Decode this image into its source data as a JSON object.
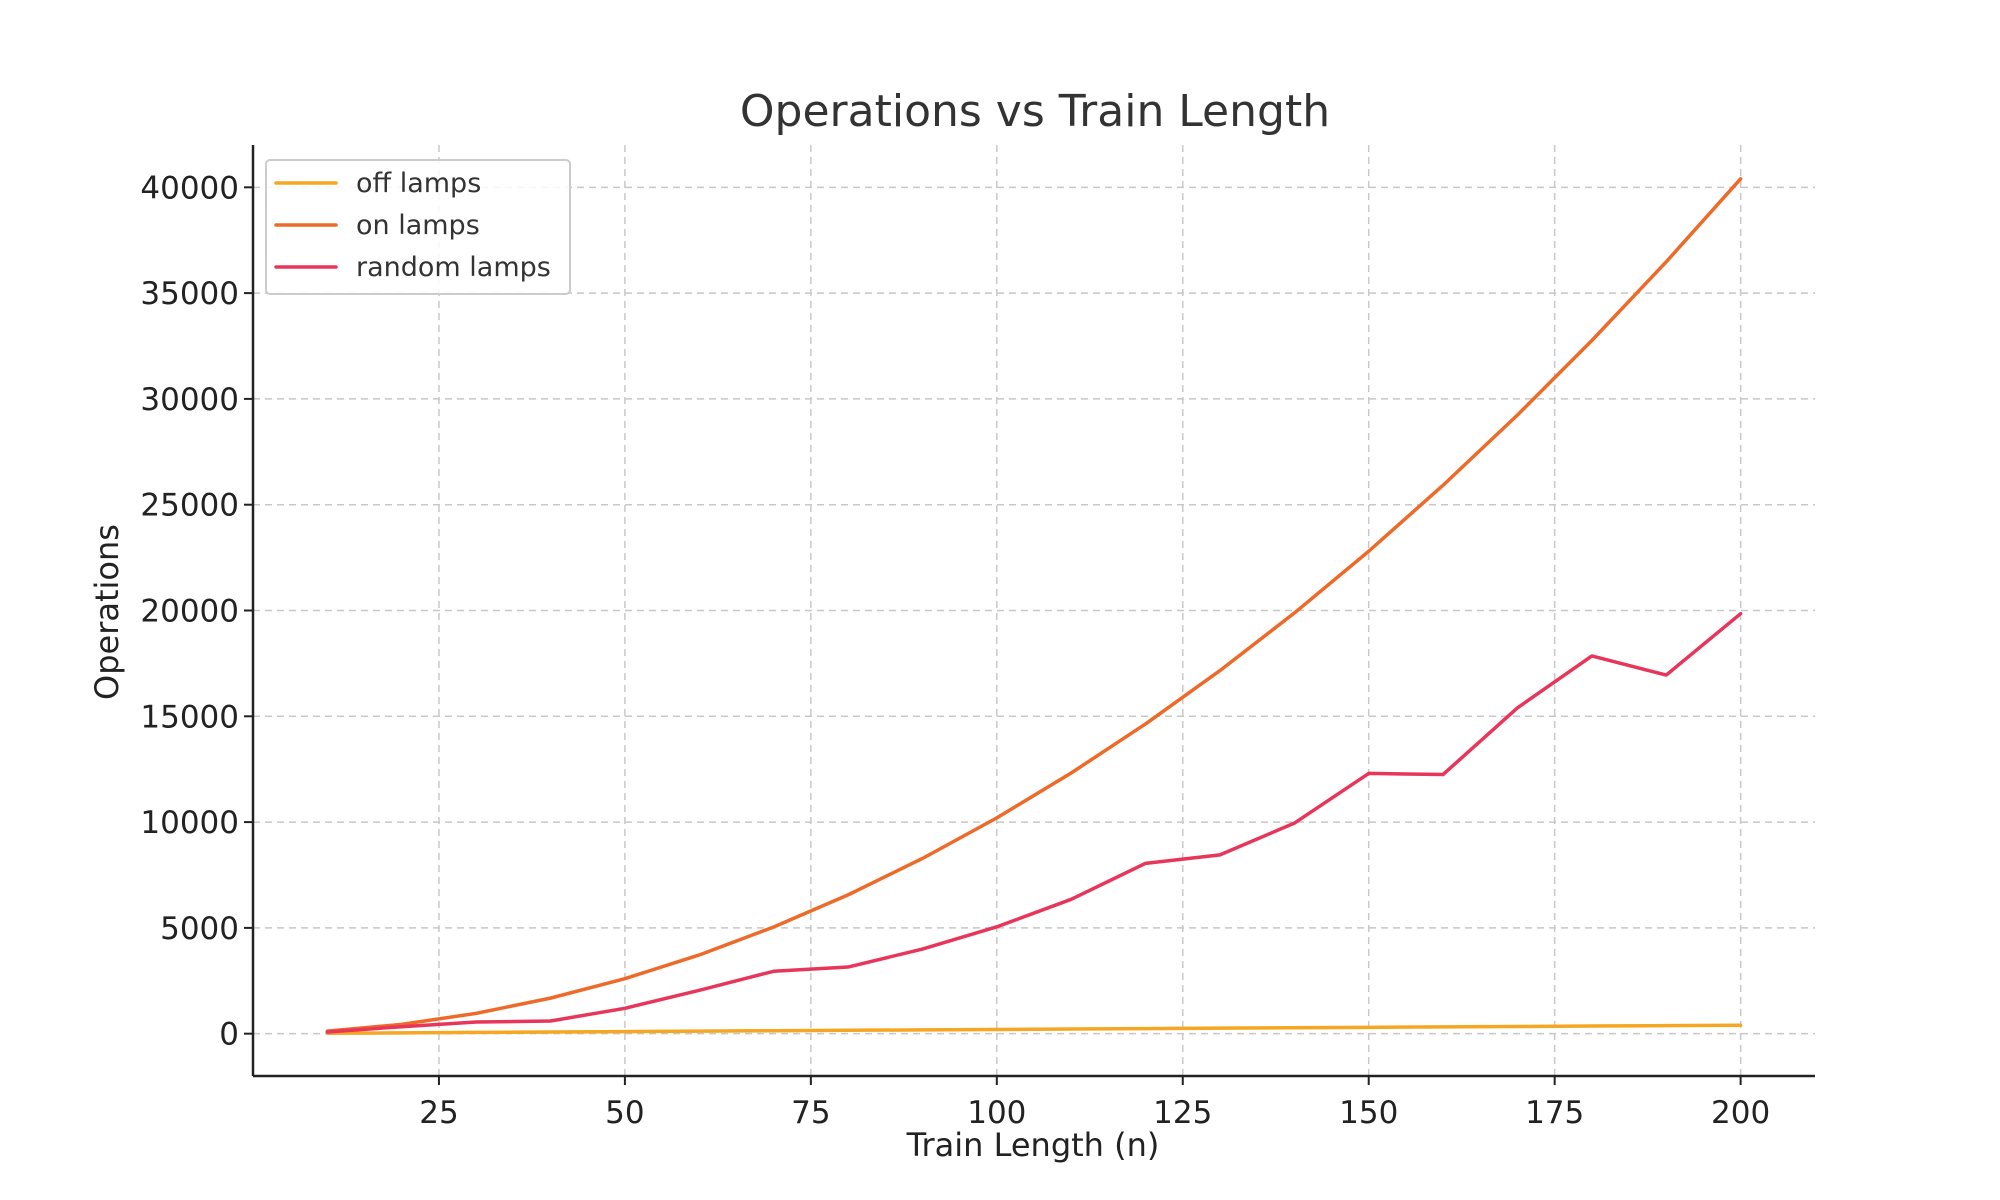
{
  "chart_data": {
    "type": "line",
    "title": "Operations vs Train Length",
    "xlabel": "Train Length (n)",
    "ylabel": "Operations",
    "x": [
      10,
      20,
      30,
      40,
      50,
      60,
      70,
      80,
      90,
      100,
      110,
      120,
      130,
      140,
      150,
      160,
      170,
      180,
      190,
      200
    ],
    "xlim": [
      0,
      210
    ],
    "ylim": [
      -2000,
      42000
    ],
    "xticks": [
      25,
      50,
      75,
      100,
      125,
      150,
      175,
      200
    ],
    "yticks": [
      0,
      5000,
      10000,
      15000,
      20000,
      25000,
      30000,
      35000,
      40000
    ],
    "grid": true,
    "legend_position": "top-left",
    "series": [
      {
        "name": "off lamps",
        "color": "#f5a623",
        "values": [
          20,
          40,
          60,
          80,
          100,
          120,
          140,
          160,
          180,
          200,
          220,
          240,
          260,
          280,
          300,
          320,
          340,
          360,
          380,
          400
        ]
      },
      {
        "name": "on lamps",
        "color": "#ee6a28",
        "values": [
          120,
          440,
          960,
          1680,
          2600,
          3720,
          5040,
          6560,
          8280,
          10200,
          12320,
          14640,
          17160,
          19880,
          22800,
          25920,
          29240,
          32760,
          36480,
          40400
        ]
      },
      {
        "name": "random lamps",
        "color": "#e8365a",
        "values": [
          80,
          330,
          550,
          600,
          1200,
          2050,
          2950,
          3150,
          4000,
          5050,
          6350,
          8050,
          8450,
          9950,
          12300,
          12250,
          15400,
          17850,
          16950,
          19850
        ]
      }
    ]
  }
}
